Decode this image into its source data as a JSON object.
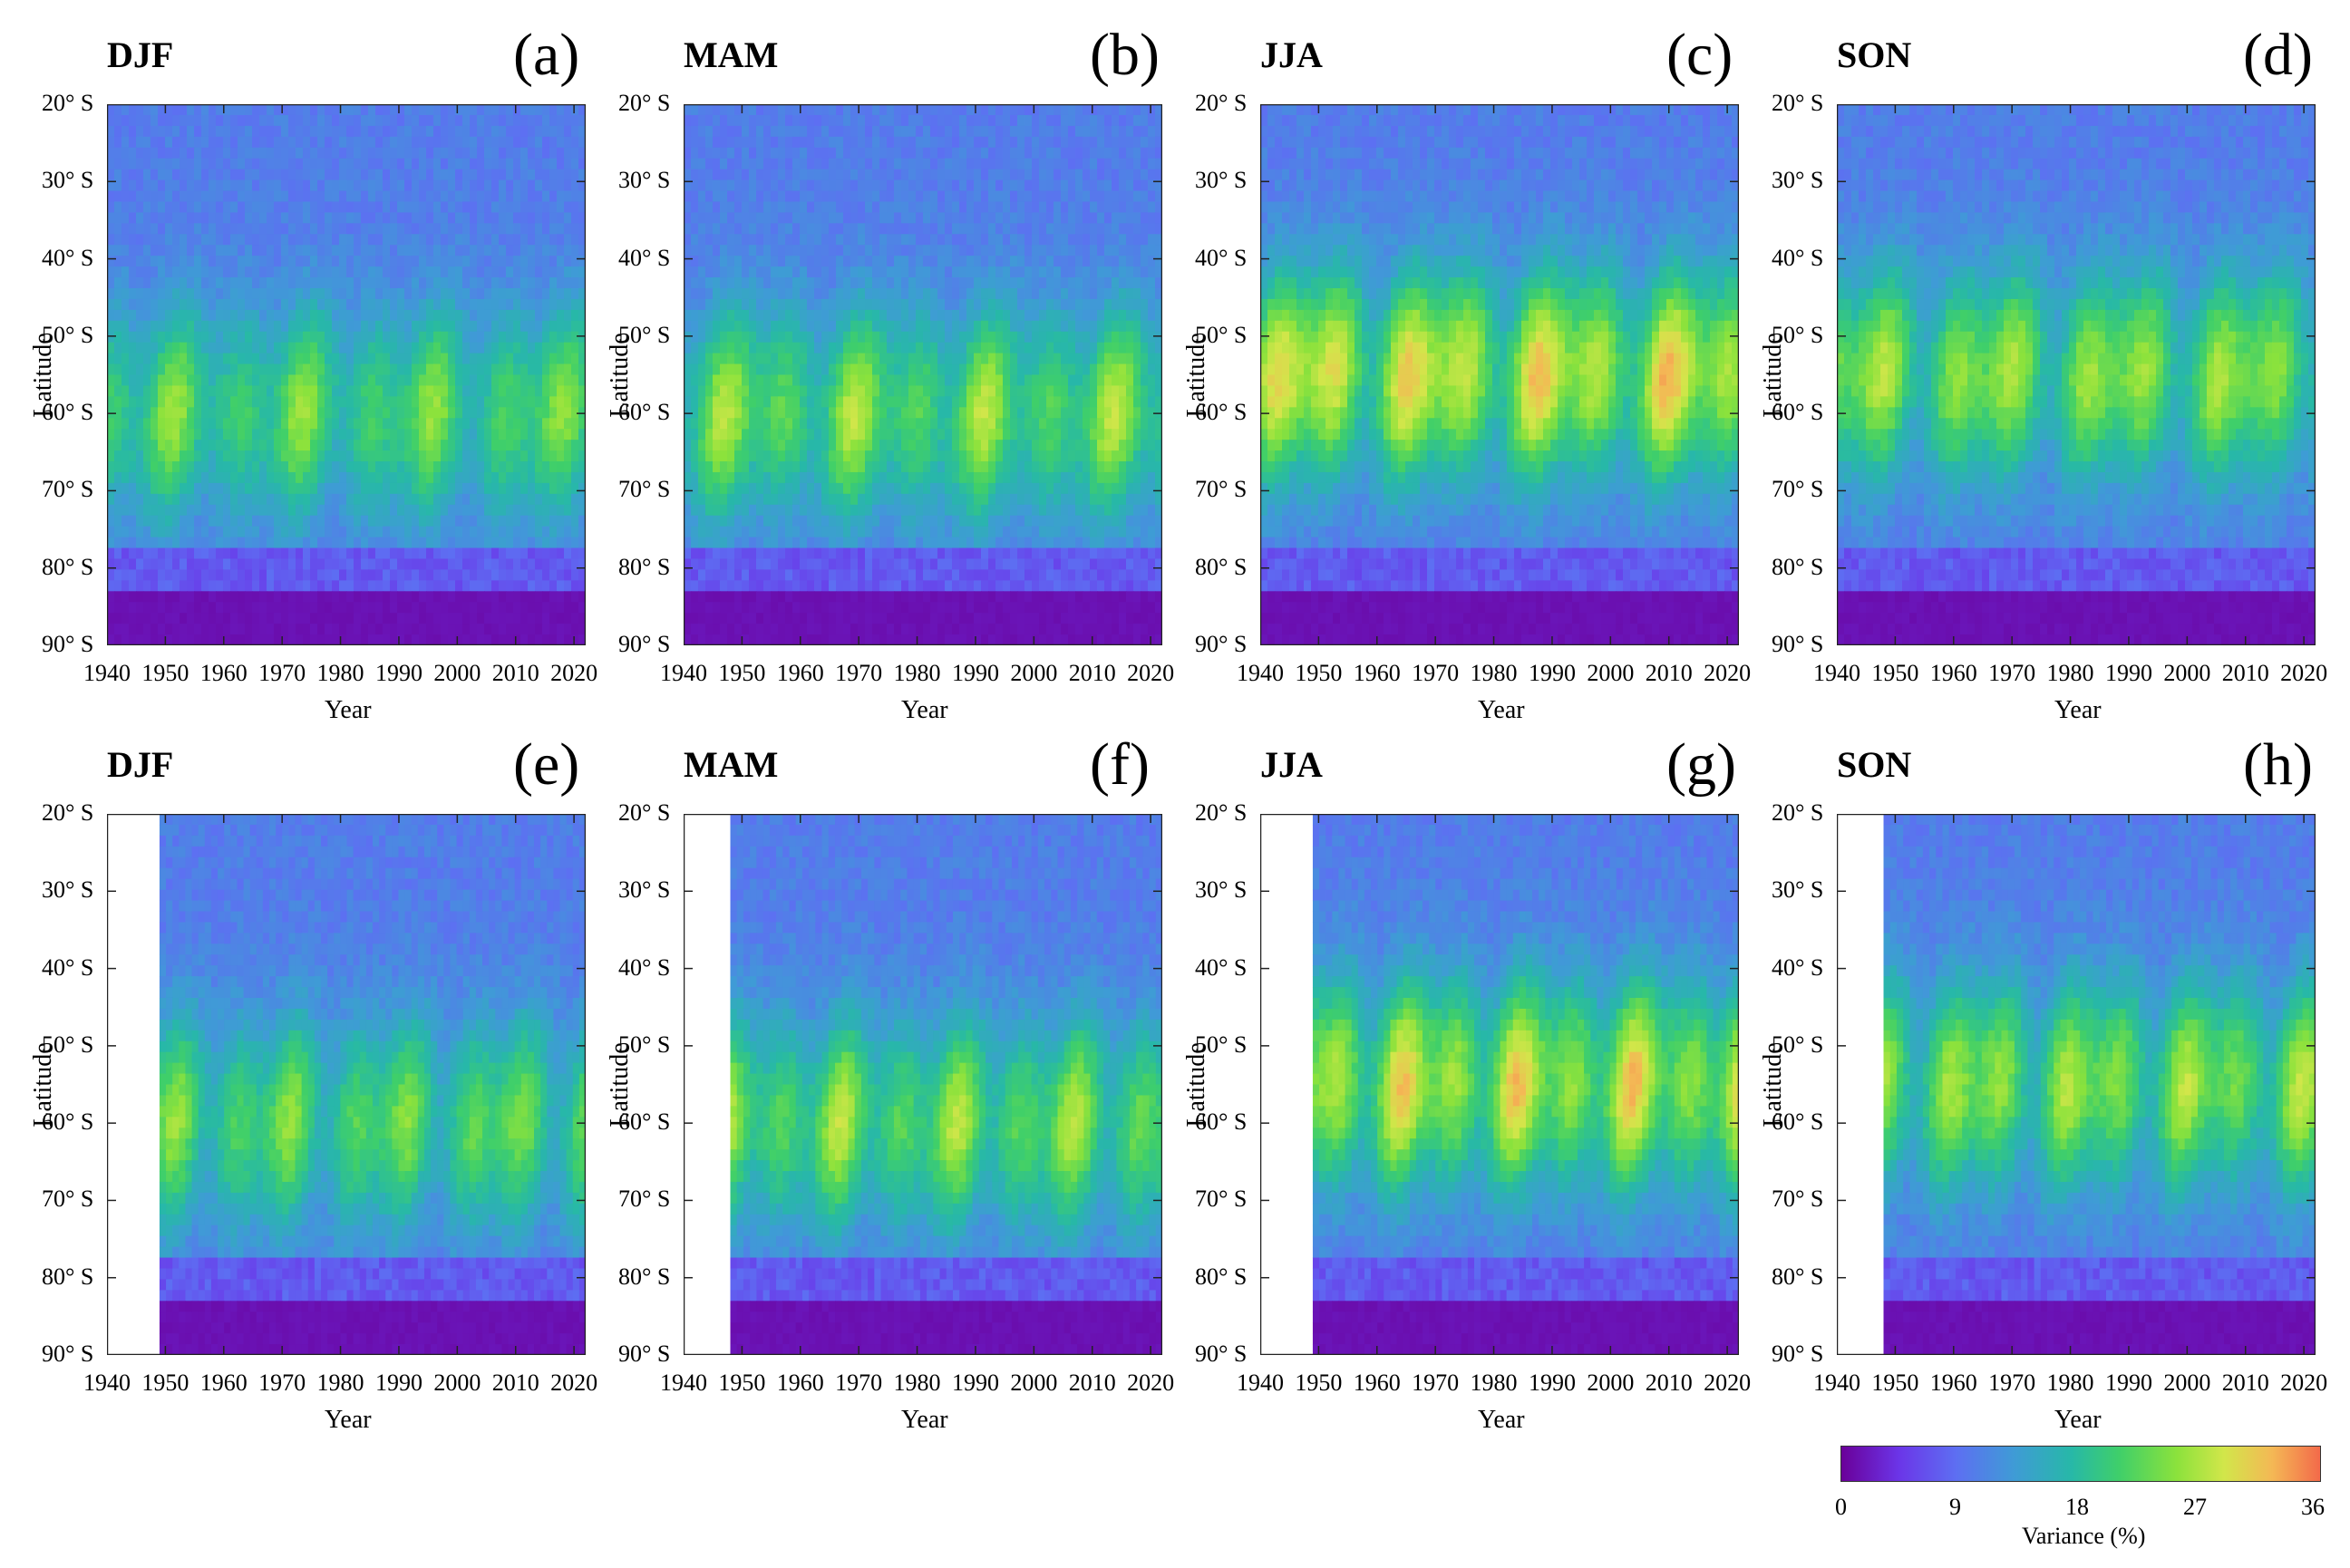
{
  "chart_data": [
    {
      "panel": "(a)",
      "season": "DJF",
      "type": "heatmap",
      "xlabel": "Year",
      "ylabel": "Latitude",
      "xlim": [
        1940,
        2022
      ],
      "ylim": [
        "20° S",
        "90° S"
      ],
      "data_start_year": 1940,
      "peak_latitude": "60° S",
      "max_variance": 24
    },
    {
      "panel": "(b)",
      "season": "MAM",
      "type": "heatmap",
      "xlabel": "Year",
      "ylabel": "Latitude",
      "xlim": [
        1940,
        2022
      ],
      "ylim": [
        "20° S",
        "90° S"
      ],
      "data_start_year": 1940,
      "peak_latitude": "60° S",
      "max_variance": 26
    },
    {
      "panel": "(c)",
      "season": "JJA",
      "type": "heatmap",
      "xlabel": "Year",
      "ylabel": "Latitude",
      "xlim": [
        1940,
        2022
      ],
      "ylim": [
        "20° S",
        "90° S"
      ],
      "data_start_year": 1940,
      "peak_latitude": "55° S",
      "max_variance": 32
    },
    {
      "panel": "(d)",
      "season": "SON",
      "type": "heatmap",
      "xlabel": "Year",
      "ylabel": "Latitude",
      "xlim": [
        1940,
        2022
      ],
      "ylim": [
        "20° S",
        "90° S"
      ],
      "data_start_year": 1940,
      "peak_latitude": "55° S",
      "max_variance": 27
    },
    {
      "panel": "(e)",
      "season": "DJF",
      "type": "heatmap",
      "xlabel": "Year",
      "ylabel": "Latitude",
      "xlim": [
        1940,
        2022
      ],
      "ylim": [
        "20° S",
        "90° S"
      ],
      "data_start_year": 1949,
      "peak_latitude": "60° S",
      "max_variance": 24
    },
    {
      "panel": "(f)",
      "season": "MAM",
      "type": "heatmap",
      "xlabel": "Year",
      "ylabel": "Latitude",
      "xlim": [
        1940,
        2022
      ],
      "ylim": [
        "20° S",
        "90° S"
      ],
      "data_start_year": 1948,
      "peak_latitude": "60° S",
      "max_variance": 26
    },
    {
      "panel": "(g)",
      "season": "JJA",
      "type": "heatmap",
      "xlabel": "Year",
      "ylabel": "Latitude",
      "xlim": [
        1940,
        2022
      ],
      "ylim": [
        "20° S",
        "90° S"
      ],
      "data_start_year": 1949,
      "peak_latitude": "55° S",
      "max_variance": 31
    },
    {
      "panel": "(h)",
      "season": "SON",
      "type": "heatmap",
      "xlabel": "Year",
      "ylabel": "Latitude",
      "xlim": [
        1940,
        2022
      ],
      "ylim": [
        "20° S",
        "90° S"
      ],
      "data_start_year": 1948,
      "peak_latitude": "55° S",
      "max_variance": 27
    }
  ],
  "axes": {
    "x_ticks": [
      "1940",
      "1950",
      "1960",
      "1970",
      "1980",
      "1990",
      "2000",
      "2010",
      "2020"
    ],
    "y_ticks": [
      "20° S",
      "30° S",
      "40° S",
      "50° S",
      "60° S",
      "70° S",
      "80° S",
      "90° S"
    ],
    "xlabel": "Year",
    "ylabel": "Latitude"
  },
  "colorbar": {
    "label": "Variance (%)",
    "ticks": [
      "0",
      "9",
      "18",
      "27",
      "36"
    ],
    "range": [
      0,
      36
    ],
    "colors": [
      "#6a0099",
      "#6b35e8",
      "#5d6ff2",
      "#3f9bd6",
      "#27b8a8",
      "#3fcf6a",
      "#8be23c",
      "#d2e64a",
      "#f4b855",
      "#f36a4a"
    ]
  }
}
